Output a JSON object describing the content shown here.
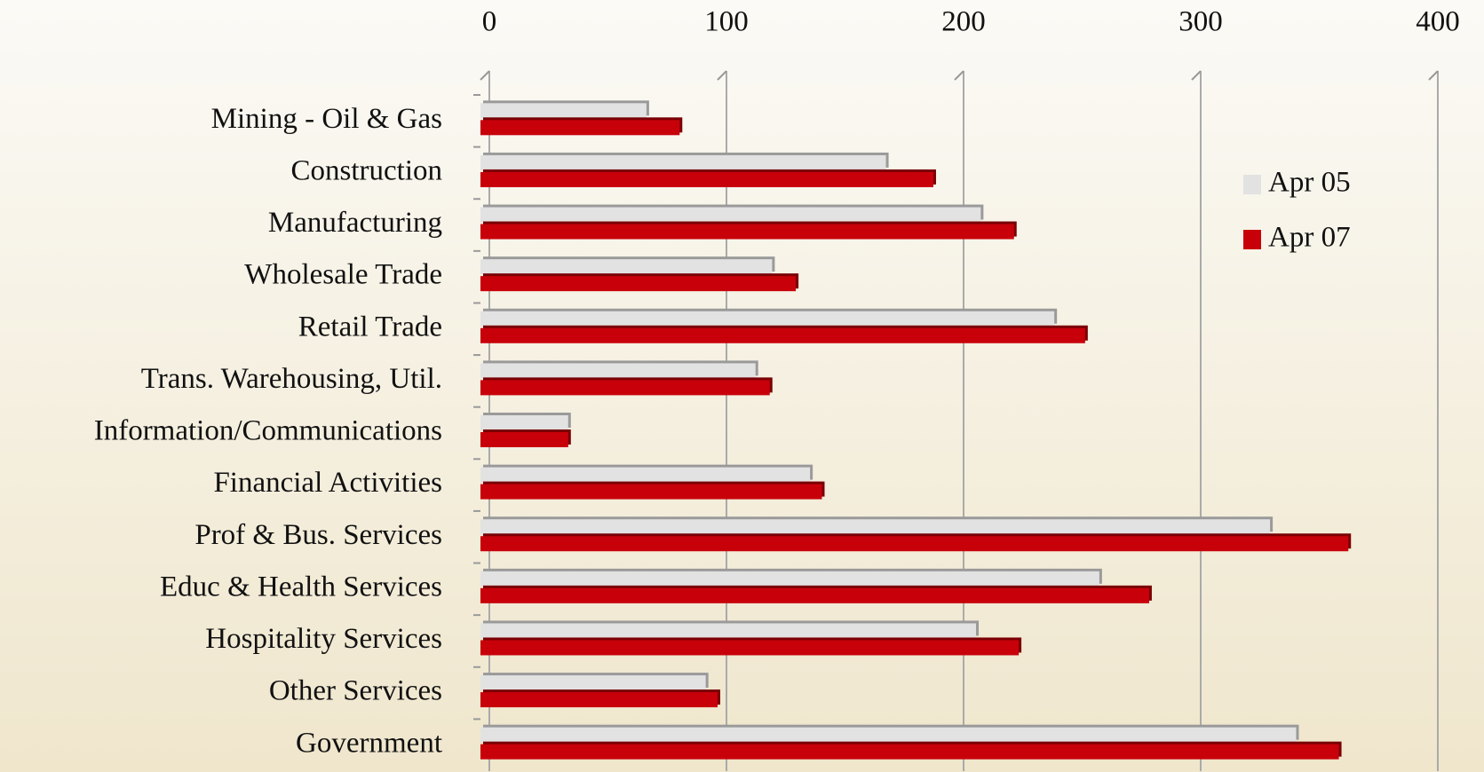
{
  "chart_data": {
    "type": "bar",
    "orientation": "horizontal",
    "categories": [
      "Mining - Oil & Gas",
      "Construction",
      "Manufacturing",
      "Wholesale Trade",
      "Retail Trade",
      "Trans. Warehousing, Util.",
      "Information/Communications",
      "Financial Activities",
      "Prof & Bus. Services",
      "Educ & Health Services",
      "Hospitality Services",
      "Other Services",
      "Government"
    ],
    "series": [
      {
        "name": "Apr 05",
        "color": "#e2e2e2",
        "values": [
          70,
          171,
          211,
          123,
          242,
          116,
          37,
          139,
          333,
          261,
          209,
          95,
          344
        ]
      },
      {
        "name": "Apr 07",
        "color": "#c8000a",
        "values": [
          84,
          191,
          225,
          133,
          255,
          122,
          37,
          144,
          366,
          282,
          227,
          100,
          362
        ]
      }
    ],
    "xlim": [
      0,
      400
    ],
    "xticks": [
      0,
      100,
      200,
      300,
      400
    ],
    "grid": true,
    "legend": "upper right"
  }
}
